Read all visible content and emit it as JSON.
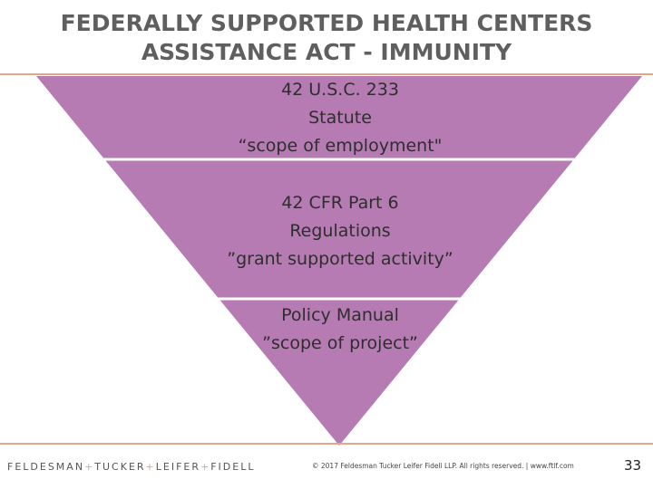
{
  "slide": {
    "title_line1": "FEDERALLY SUPPORTED HEALTH CENTERS",
    "title_line2": "ASSISTANCE ACT - IMMUNITY",
    "page_number": "33"
  },
  "funnel": {
    "fill_color": "#b57bb2",
    "divider_color": "#ffffff",
    "tiers": [
      {
        "line1": "42 U.S.C. 233",
        "line2": "Statute",
        "line3": "“scope of employment\""
      },
      {
        "line1": "42 CFR Part 6",
        "line2": "Regulations",
        "line3": "”grant supported activity”"
      },
      {
        "line1": "Policy Manual",
        "line2": "”scope of project”"
      }
    ]
  },
  "footer": {
    "logo_parts": [
      "FELDESMAN",
      "TUCKER",
      "LEIFER",
      "FIDELL"
    ],
    "logo_separator": "+",
    "copyright": "© 2017 Feldesman Tucker Leifer Fidell LLP. All rights reserved. | www.ftlf.com",
    "accent_color": "#e3a58b"
  }
}
